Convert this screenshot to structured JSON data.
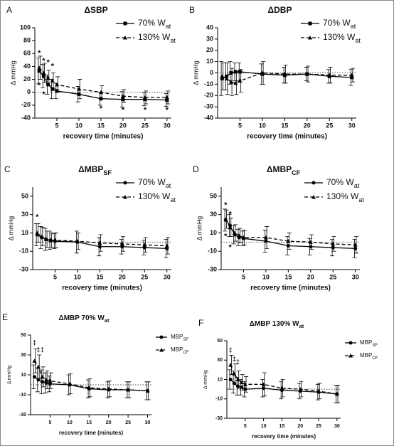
{
  "chart_data": [
    {
      "type": "line",
      "panel": "A",
      "title": "ΔSBP",
      "x_label": "recovery time (minutes)",
      "y_label": "Δ mmHg",
      "x": [
        1,
        2,
        3,
        4,
        5,
        10,
        15,
        20,
        25,
        30
      ],
      "xlim": [
        0,
        31
      ],
      "xticks": [
        5,
        10,
        15,
        20,
        25,
        30
      ],
      "ylim": [
        -40,
        100
      ],
      "yticks": [
        -40,
        -20,
        0,
        20,
        40,
        60,
        80,
        100
      ],
      "zero_line": true,
      "legend": "upper right",
      "series": [
        {
          "name": "70% W",
          "name_sub": "at",
          "color": "#000000",
          "dash": false,
          "marker": "square",
          "values": [
            33,
            25,
            12,
            5,
            2,
            -3,
            -10,
            -11,
            -11,
            -12
          ],
          "errors": [
            20,
            18,
            15,
            15,
            12,
            12,
            10,
            12,
            10,
            10
          ]
        },
        {
          "name": "130% W",
          "name_sub": "at",
          "color": "#000000",
          "dash": true,
          "marker": "triangle",
          "values": [
            38,
            30,
            22,
            18,
            12,
            5,
            0,
            -6,
            -8,
            -8
          ],
          "errors": [
            18,
            15,
            12,
            12,
            12,
            15,
            10,
            10,
            10,
            10
          ]
        }
      ],
      "annotations": [
        {
          "text": "*",
          "x": 1,
          "y": 60
        },
        {
          "text": "*",
          "x": 2,
          "y": 48
        },
        {
          "text": "*",
          "x": 3,
          "y": 46
        },
        {
          "text": "*",
          "x": 4,
          "y": 40
        },
        {
          "text": "*",
          "x": 1,
          "y": 10
        },
        {
          "text": "*",
          "x": 2,
          "y": -4
        },
        {
          "text": "*",
          "x": 15,
          "y": -26
        },
        {
          "text": "*",
          "x": 20,
          "y": -28
        },
        {
          "text": "*",
          "x": 25,
          "y": -28
        },
        {
          "text": "*",
          "x": 30,
          "y": -28
        }
      ]
    },
    {
      "type": "line",
      "panel": "B",
      "title": "ΔDBP",
      "x_label": "recovery time (minutes)",
      "y_label": "Δ mmHg",
      "x": [
        1,
        2,
        3,
        4,
        5,
        10,
        15,
        20,
        25,
        30
      ],
      "xlim": [
        0,
        31
      ],
      "xticks": [
        5,
        10,
        15,
        20,
        25,
        30
      ],
      "ylim": [
        -40,
        40
      ],
      "yticks": [
        -40,
        -30,
        -20,
        -10,
        0,
        10,
        20,
        30,
        40
      ],
      "zero_line": true,
      "legend": "upper right",
      "series": [
        {
          "name": "70% W",
          "name_sub": "at",
          "color": "#000000",
          "dash": false,
          "marker": "square",
          "values": [
            -5,
            -3,
            0,
            1,
            1,
            -1,
            -2,
            -1,
            -3,
            -4
          ],
          "errors": [
            15,
            12,
            10,
            8,
            8,
            9,
            7,
            6,
            6,
            7
          ]
        },
        {
          "name": "130% W",
          "name_sub": "at",
          "color": "#000000",
          "dash": true,
          "marker": "triangle",
          "values": [
            -3,
            -5,
            -8,
            -9,
            -7,
            0,
            -1,
            -1,
            -2,
            -2
          ],
          "errors": [
            12,
            14,
            12,
            10,
            10,
            10,
            8,
            7,
            7,
            6
          ]
        }
      ],
      "annotations": []
    },
    {
      "type": "line",
      "panel": "C",
      "title": "ΔMBP",
      "title_sub": "SF",
      "x_label": "recovery time (minutes)",
      "y_label": "Δ mmHg",
      "x": [
        1,
        2,
        3,
        4,
        5,
        10,
        15,
        20,
        25,
        30
      ],
      "xlim": [
        0,
        31
      ],
      "xticks": [
        5,
        10,
        15,
        20,
        25,
        30
      ],
      "ylim": [
        -30,
        60
      ],
      "yticks": [
        -30,
        -10,
        10,
        30,
        50
      ],
      "zero_line": true,
      "legend": "upper right",
      "series": [
        {
          "name": "70% W",
          "name_sub": "at",
          "color": "#000000",
          "dash": false,
          "marker": "circle",
          "values": [
            8,
            5,
            3,
            2,
            1,
            0,
            -5,
            -5,
            -6,
            -7
          ],
          "errors": [
            12,
            12,
            12,
            10,
            8,
            12,
            10,
            8,
            8,
            10
          ]
        },
        {
          "name": "130% W",
          "name_sub": "at",
          "color": "#000000",
          "dash": true,
          "marker": "triangle",
          "values": [
            10,
            6,
            3,
            2,
            2,
            1,
            -1,
            -2,
            -3,
            -4
          ],
          "errors": [
            10,
            10,
            9,
            8,
            8,
            9,
            9,
            8,
            8,
            9
          ]
        }
      ],
      "annotations": [
        {
          "text": "*",
          "x": 1,
          "y": 27
        }
      ]
    },
    {
      "type": "line",
      "panel": "D",
      "title": "ΔMBP",
      "title_sub": "CF",
      "x_label": "recovery time (minutes)",
      "y_label": "Δ mmHg",
      "x": [
        1,
        2,
        3,
        4,
        5,
        10,
        15,
        20,
        25,
        30
      ],
      "xlim": [
        0,
        31
      ],
      "xticks": [
        5,
        10,
        15,
        20,
        25,
        30
      ],
      "ylim": [
        -30,
        60
      ],
      "yticks": [
        -30,
        -10,
        10,
        30,
        50
      ],
      "zero_line": true,
      "legend": "upper right",
      "series": [
        {
          "name": "70% W",
          "name_sub": "at",
          "color": "#000000",
          "dash": false,
          "marker": "circle",
          "values": [
            24,
            18,
            8,
            5,
            4,
            1,
            -4,
            -5,
            -6,
            -7
          ],
          "errors": [
            12,
            12,
            10,
            9,
            8,
            12,
            10,
            9,
            9,
            10
          ]
        },
        {
          "name": "130% W",
          "name_sub": "at",
          "color": "#000000",
          "dash": true,
          "marker": "triangle",
          "values": [
            25,
            16,
            10,
            7,
            5,
            5,
            1,
            0,
            -2,
            -3
          ],
          "errors": [
            10,
            10,
            9,
            8,
            8,
            12,
            9,
            8,
            8,
            9
          ]
        }
      ],
      "annotations": [
        {
          "text": "*",
          "x": 1,
          "y": 40
        },
        {
          "text": "*",
          "x": 2,
          "y": 30
        },
        {
          "text": "*",
          "x": 1,
          "y": 6
        },
        {
          "text": "*",
          "x": 2,
          "y": -6
        }
      ]
    },
    {
      "type": "line",
      "panel": "E",
      "title": "ΔMBP 70% W",
      "title_sub": "at",
      "x_label": "recovery time (minutes)",
      "y_label": "Δ mmHg",
      "x": [
        1,
        2,
        3,
        4,
        5,
        10,
        15,
        20,
        25,
        30
      ],
      "xlim": [
        0,
        31
      ],
      "xticks": [
        5,
        10,
        15,
        20,
        25,
        30
      ],
      "ylim": [
        -30,
        50
      ],
      "yticks": [
        -30,
        -10,
        10,
        30,
        50
      ],
      "zero_line": true,
      "legend": "outside right",
      "series": [
        {
          "name": "MBP",
          "name_sub": "SF",
          "color": "#000000",
          "dash": false,
          "marker": "circle",
          "values": [
            8,
            5,
            3,
            2,
            1,
            0,
            -4,
            -5,
            -5,
            -6
          ],
          "errors": [
            12,
            12,
            12,
            10,
            8,
            10,
            9,
            8,
            8,
            9
          ]
        },
        {
          "name": "MBP",
          "name_sub": "CF",
          "color": "#000000",
          "dash": true,
          "marker": "triangle",
          "values": [
            24,
            18,
            8,
            5,
            4,
            1,
            -3,
            -4,
            -5,
            -6
          ],
          "errors": [
            12,
            12,
            10,
            9,
            8,
            10,
            9,
            8,
            8,
            9
          ]
        }
      ],
      "annotations": [
        {
          "text": "‡",
          "x": 1,
          "y": 42
        },
        {
          "text": "‡",
          "x": 2,
          "y": 35
        },
        {
          "text": "‡",
          "x": 3,
          "y": 35
        }
      ]
    },
    {
      "type": "line",
      "panel": "F",
      "title": "ΔMBP 130% W",
      "title_sub": "at",
      "x_label": "recovery time (minutes)",
      "y_label": "Δ mmHg",
      "x": [
        1,
        2,
        3,
        4,
        5,
        10,
        15,
        20,
        25,
        30
      ],
      "xlim": [
        0,
        31
      ],
      "xticks": [
        5,
        10,
        15,
        20,
        25,
        30
      ],
      "ylim": [
        -30,
        50
      ],
      "yticks": [
        -30,
        -10,
        10,
        30,
        50
      ],
      "zero_line": true,
      "legend": "outside right",
      "series": [
        {
          "name": "MBP",
          "name_sub": "SF",
          "color": "#000000",
          "dash": false,
          "marker": "circle",
          "values": [
            10,
            6,
            3,
            2,
            0,
            1,
            -1,
            -2,
            -3,
            -5
          ],
          "errors": [
            10,
            10,
            9,
            8,
            8,
            9,
            9,
            8,
            8,
            9
          ]
        },
        {
          "name": "MBP",
          "name_sub": "CF",
          "color": "#000000",
          "dash": true,
          "marker": "triangle",
          "values": [
            25,
            16,
            10,
            7,
            5,
            5,
            1,
            0,
            -2,
            -5
          ],
          "errors": [
            10,
            10,
            9,
            8,
            8,
            12,
            9,
            8,
            8,
            9
          ]
        }
      ],
      "annotations": [
        {
          "text": "‡",
          "x": 1,
          "y": 40
        },
        {
          "text": "‡",
          "x": 2,
          "y": 31
        },
        {
          "text": "‡",
          "x": 3,
          "y": 28
        }
      ]
    }
  ]
}
